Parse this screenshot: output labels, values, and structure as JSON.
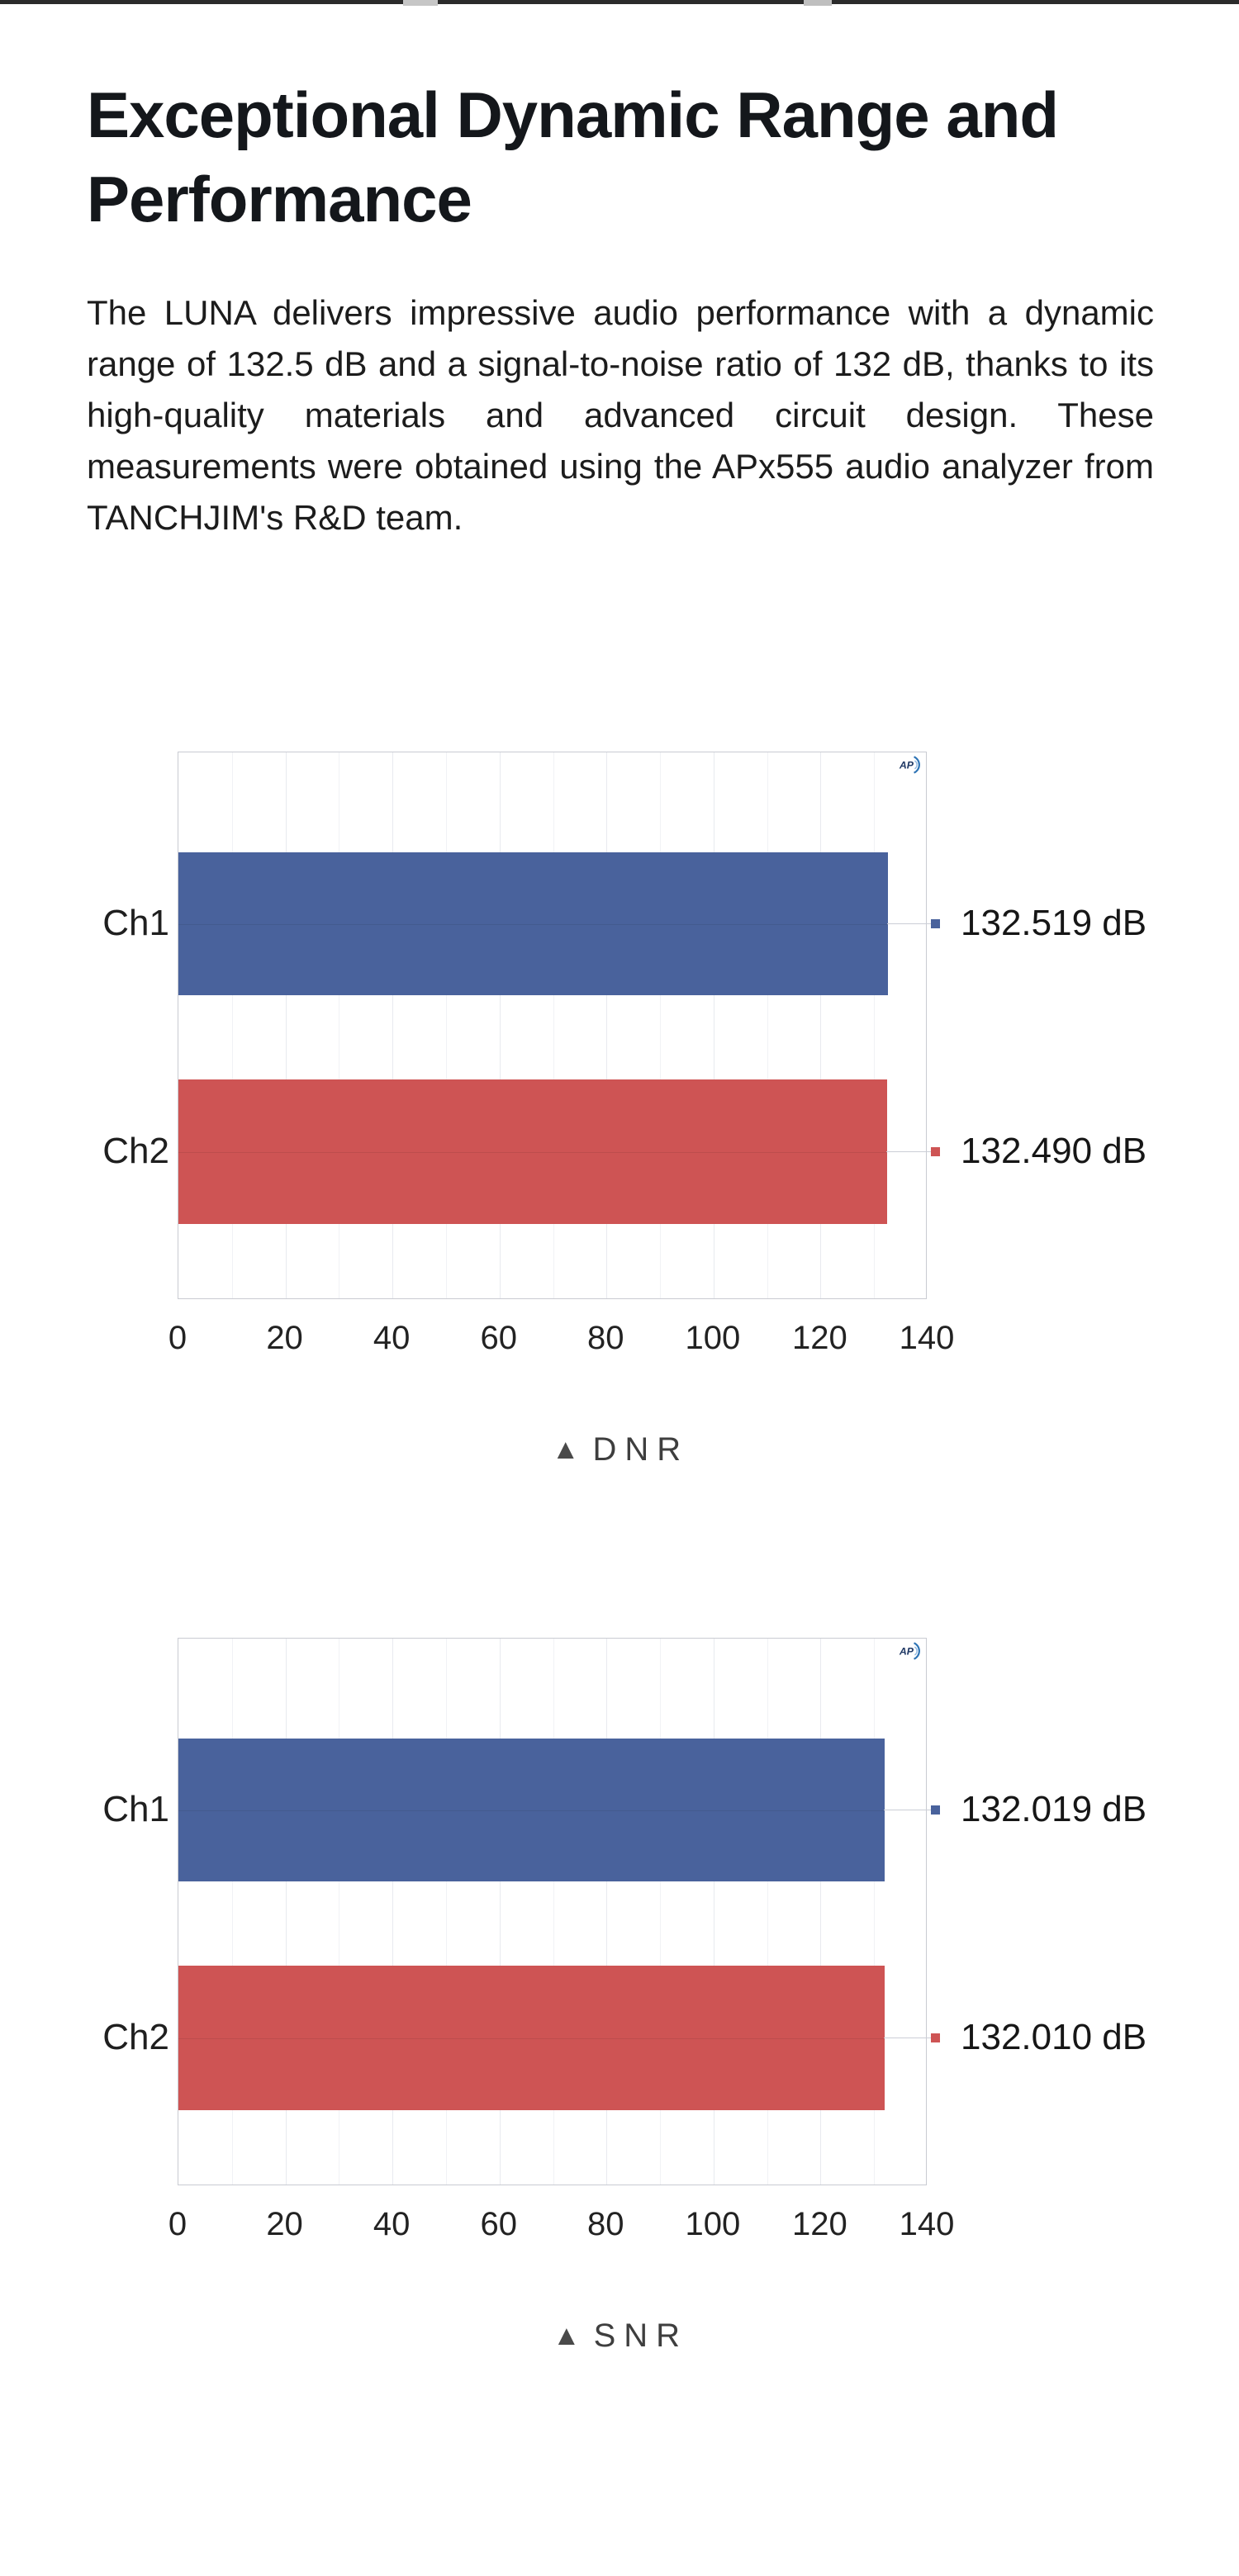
{
  "page": {
    "heading": "Exceptional Dynamic Range and Performance",
    "paragraph": "The LUNA delivers impressive audio performance with a dynamic range of 132.5 dB and a signal-to-noise ratio of 132 dB, thanks to its high-quality materials and advanced circuit design. These measurements were obtained using the APx555 audio analyzer from TANCHJIM's R&D team."
  },
  "colors": {
    "bar_blue": "#49629C",
    "bar_red": "#CE5454",
    "text": "#1A1A1A",
    "caption_text": "#3E3E3E",
    "logo_navy": "#1F3864",
    "logo_blue": "#2E74B5",
    "grid": "#E8EAEF",
    "plot_border": "#C9CBD2"
  },
  "chart_data": [
    {
      "type": "bar",
      "orientation": "horizontal",
      "title": "DNR",
      "caption_marker": "▲",
      "categories": [
        "Ch1",
        "Ch2"
      ],
      "values": [
        132.519,
        132.49
      ],
      "value_labels": [
        "132.519 dB",
        "132.490 dB"
      ],
      "series_colors": [
        "#49629C",
        "#CE5454"
      ],
      "xlim": [
        0,
        140
      ],
      "xticks": [
        "0",
        "20",
        "40",
        "60",
        "80",
        "100",
        "120",
        "140"
      ],
      "grid": "vertical-minor-10-major-20",
      "legend_position": "none",
      "brand_logo": "AP"
    },
    {
      "type": "bar",
      "orientation": "horizontal",
      "title": "SNR",
      "caption_marker": "▲",
      "categories": [
        "Ch1",
        "Ch2"
      ],
      "values": [
        132.019,
        132.01
      ],
      "value_labels": [
        "132.019 dB",
        "132.010 dB"
      ],
      "series_colors": [
        "#49629C",
        "#CE5454"
      ],
      "xlim": [
        0,
        140
      ],
      "xticks": [
        "0",
        "20",
        "40",
        "60",
        "80",
        "100",
        "120",
        "140"
      ],
      "grid": "vertical-minor-10-major-20",
      "legend_position": "none",
      "brand_logo": "AP"
    }
  ]
}
